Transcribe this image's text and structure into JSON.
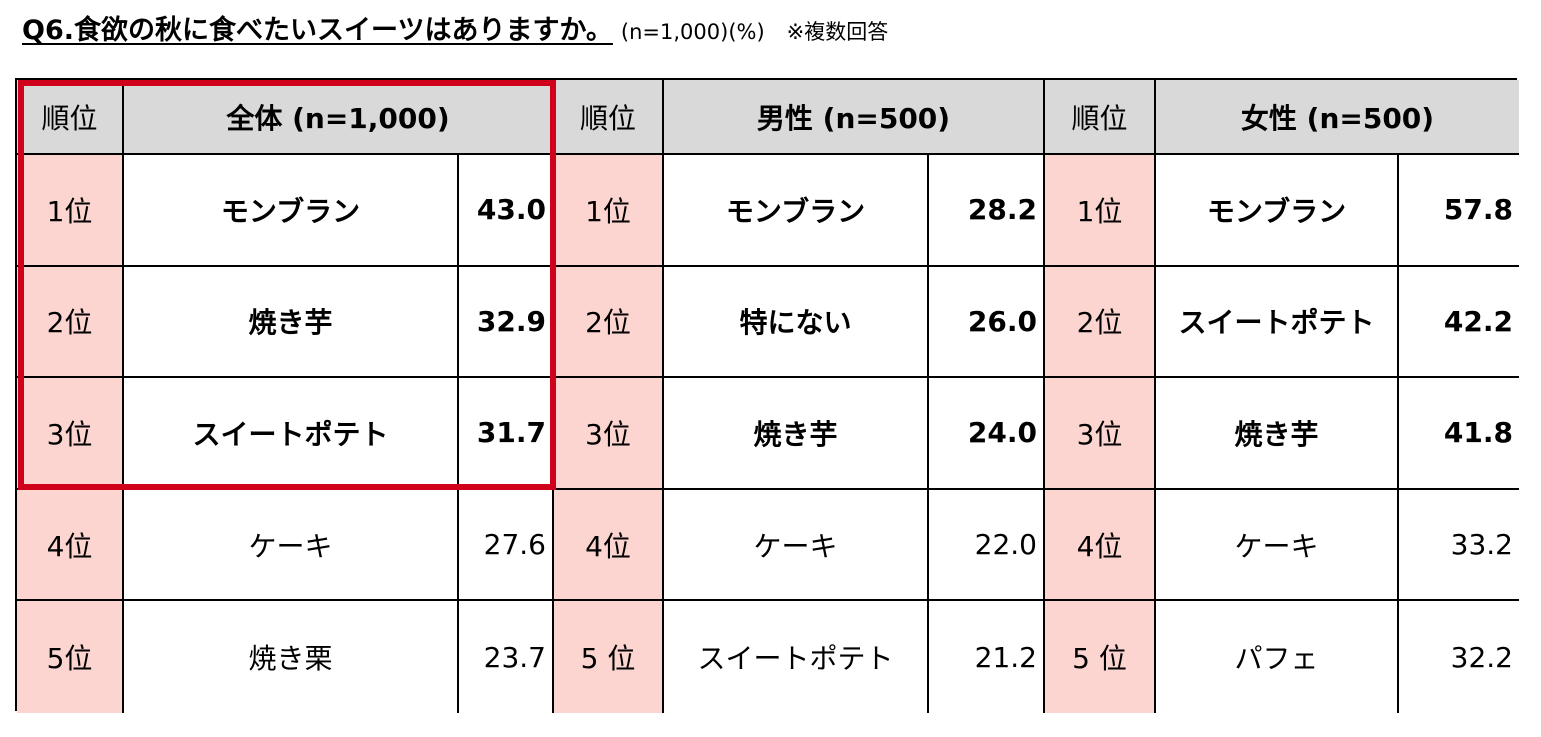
{
  "title": {
    "main": "Q6.食欲の秋に食べたいスイーツはありますか。",
    "sample": "(n=1,000)(%)",
    "note": "※複数回答"
  },
  "colors": {
    "header_bg": "#d9d9d9",
    "rank_bg": "#fcd5d0",
    "highlight": "#d0021b"
  },
  "table": {
    "rank_header": "順位",
    "groups": [
      {
        "key": "total",
        "header": "全体 (n=1,000)",
        "rows": [
          {
            "rank": "1位",
            "item": "モンブラン",
            "value": "43.0"
          },
          {
            "rank": "2位",
            "item": "焼き芋",
            "value": "32.9"
          },
          {
            "rank": "3位",
            "item": "スイートポテト",
            "value": "31.7"
          },
          {
            "rank": "4位",
            "item": "ケーキ",
            "value": "27.6"
          },
          {
            "rank": "5位",
            "item": "焼き栗",
            "value": "23.7"
          }
        ]
      },
      {
        "key": "male",
        "header": "男性 (n=500)",
        "rows": [
          {
            "rank": "1位",
            "item": "モンブラン",
            "value": "28.2"
          },
          {
            "rank": "2位",
            "item": "特にない",
            "value": "26.0"
          },
          {
            "rank": "3位",
            "item": "焼き芋",
            "value": "24.0"
          },
          {
            "rank": "4位",
            "item": "ケーキ",
            "value": "22.0"
          },
          {
            "rank": "5 位",
            "item": "スイートポテト",
            "value": "21.2"
          }
        ]
      },
      {
        "key": "female",
        "header": "女性 (n=500)",
        "rows": [
          {
            "rank": "1位",
            "item": "モンブラン",
            "value": "57.8"
          },
          {
            "rank": "2位",
            "item": "スイートポテト",
            "value": "42.2"
          },
          {
            "rank": "3位",
            "item": "焼き芋",
            "value": "41.8"
          },
          {
            "rank": "4位",
            "item": "ケーキ",
            "value": "33.2"
          },
          {
            "rank": "5 位",
            "item": "パフェ",
            "value": "32.2"
          }
        ]
      }
    ]
  }
}
